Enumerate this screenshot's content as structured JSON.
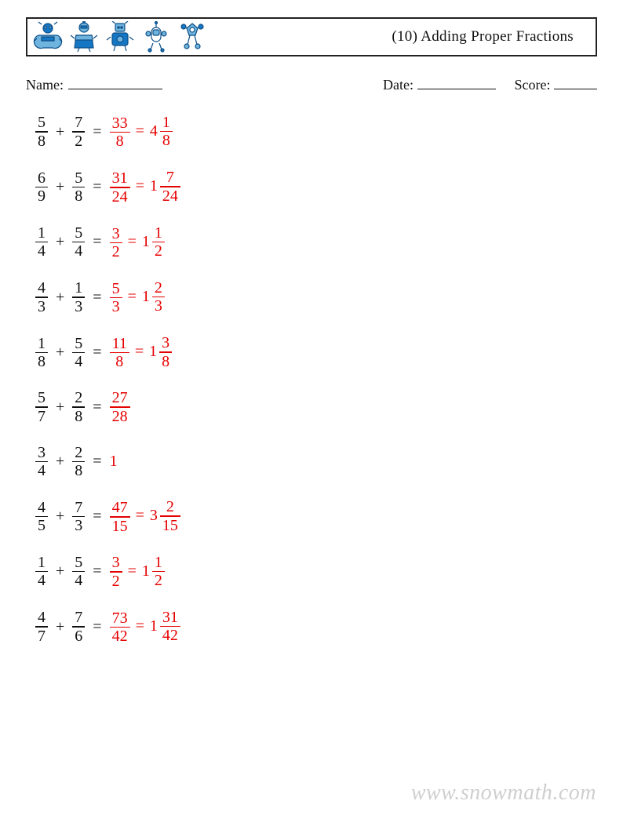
{
  "header": {
    "title": "(10) Adding Proper Fractions",
    "robot_colors": {
      "main": "#1576c4",
      "light": "#6eb4de",
      "line": "#0e4f86"
    }
  },
  "meta": {
    "name_label": "Name:",
    "date_label": "Date:",
    "score_label": "Score:"
  },
  "colors": {
    "question": "#111111",
    "answer": "#e50000"
  },
  "problems": [
    {
      "a": {
        "n": 5,
        "d": 8
      },
      "b": {
        "n": 7,
        "d": 2
      },
      "ans": [
        {
          "type": "fr",
          "n": 33,
          "d": 8
        },
        {
          "type": "mixed",
          "w": 4,
          "n": 1,
          "d": 8
        }
      ]
    },
    {
      "a": {
        "n": 6,
        "d": 9
      },
      "b": {
        "n": 5,
        "d": 8
      },
      "ans": [
        {
          "type": "fr",
          "n": 31,
          "d": 24
        },
        {
          "type": "mixed",
          "w": 1,
          "n": 7,
          "d": 24
        }
      ]
    },
    {
      "a": {
        "n": 1,
        "d": 4
      },
      "b": {
        "n": 5,
        "d": 4
      },
      "ans": [
        {
          "type": "fr",
          "n": 3,
          "d": 2
        },
        {
          "type": "mixed",
          "w": 1,
          "n": 1,
          "d": 2
        }
      ]
    },
    {
      "a": {
        "n": 4,
        "d": 3
      },
      "b": {
        "n": 1,
        "d": 3
      },
      "ans": [
        {
          "type": "fr",
          "n": 5,
          "d": 3
        },
        {
          "type": "mixed",
          "w": 1,
          "n": 2,
          "d": 3
        }
      ]
    },
    {
      "a": {
        "n": 1,
        "d": 8
      },
      "b": {
        "n": 5,
        "d": 4
      },
      "ans": [
        {
          "type": "fr",
          "n": 11,
          "d": 8
        },
        {
          "type": "mixed",
          "w": 1,
          "n": 3,
          "d": 8
        }
      ]
    },
    {
      "a": {
        "n": 5,
        "d": 7
      },
      "b": {
        "n": 2,
        "d": 8
      },
      "ans": [
        {
          "type": "fr",
          "n": 27,
          "d": 28
        }
      ]
    },
    {
      "a": {
        "n": 3,
        "d": 4
      },
      "b": {
        "n": 2,
        "d": 8
      },
      "ans": [
        {
          "type": "int",
          "v": 1
        }
      ]
    },
    {
      "a": {
        "n": 4,
        "d": 5
      },
      "b": {
        "n": 7,
        "d": 3
      },
      "ans": [
        {
          "type": "fr",
          "n": 47,
          "d": 15
        },
        {
          "type": "mixed",
          "w": 3,
          "n": 2,
          "d": 15
        }
      ]
    },
    {
      "a": {
        "n": 1,
        "d": 4
      },
      "b": {
        "n": 5,
        "d": 4
      },
      "ans": [
        {
          "type": "fr",
          "n": 3,
          "d": 2
        },
        {
          "type": "mixed",
          "w": 1,
          "n": 1,
          "d": 2
        }
      ]
    },
    {
      "a": {
        "n": 4,
        "d": 7
      },
      "b": {
        "n": 7,
        "d": 6
      },
      "ans": [
        {
          "type": "fr",
          "n": 73,
          "d": 42
        },
        {
          "type": "mixed",
          "w": 1,
          "n": 31,
          "d": 42
        }
      ]
    }
  ],
  "watermark": "www.snowmath.com"
}
